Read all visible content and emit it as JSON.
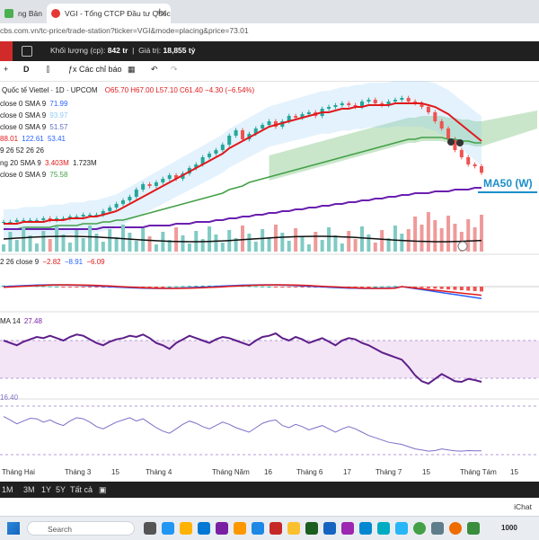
{
  "browser": {
    "tabs": [
      {
        "label": "ng Bản"
      },
      {
        "label": "VGI - Tổng CTCP Đầu tư Quốc t"
      }
    ],
    "url": "cbs.com.vn/tc-price/trade-station?ticker=VGI&mode=placing&price=73.01"
  },
  "site_toolbar": {
    "volume_label": "Khối lượng (cp):",
    "volume_value": "842 tr",
    "value_label": "Giá trị:",
    "value_value": "18,855 tỷ"
  },
  "chart_toolbar": {
    "interval": "D",
    "indicators_label": "Các chỉ báo"
  },
  "legends": {
    "title": "Quốc tế Viettel · 1D · UPCOM",
    "ohlc": {
      "o": "O65.70",
      "h": "H67.00",
      "l": "L57.10",
      "c": "C61.40",
      "chg": "−4.30 (−6.54%)"
    },
    "sma1": {
      "label": "close 0 SMA 9",
      "value": "71.99"
    },
    "sma2": {
      "label": "close 0 SMA 9",
      "value": "93.97"
    },
    "sma3": {
      "label": "close 0 SMA 9",
      "value": "51.57"
    },
    "ichi": {
      "v1": "88.01",
      "v2": "122.61",
      "v3": "53.41"
    },
    "ichi_params": "9 26 52 26 26",
    "vol": {
      "label": "ng 20 SMA 9",
      "v1": "3.403M",
      "v2": "1.723M"
    },
    "sma4": {
      "label": "close 0 SMA 9",
      "value": "75.58"
    },
    "macd": {
      "label": "2 26 close 9",
      "v1": "−2.82",
      "v2": "−8.91",
      "v3": "−6.09"
    },
    "rsi": {
      "label": "MA 14",
      "value": "27.48"
    },
    "stoch": {
      "value": "16.40"
    }
  },
  "annotation": "MA50 (W)",
  "time_axis": [
    "Tháng Hai",
    "Tháng 3",
    "15",
    "Tháng 4",
    "Tháng Năm",
    "16",
    "Tháng 6",
    "17",
    "Tháng 7",
    "15",
    "Tháng Tám",
    "15"
  ],
  "ranges": [
    "1M",
    "3M",
    "1Y",
    "5Y",
    "Tất cả"
  ],
  "bottom_right": "iChat",
  "taskbar": {
    "search_placeholder": "Search",
    "weather": "1000"
  },
  "colors": {
    "up": "#26a69a",
    "down": "#ef5350",
    "ma_red": "#e0191b",
    "ma_green": "#43a047",
    "ma_purple": "#6a1fb0",
    "ma_blue": "#2962ff",
    "cloud": "#a5d6a7",
    "rsi_band": "#f3e5f5"
  },
  "chart_data": {
    "type": "candlestick",
    "ticker": "VGI",
    "interval": "1D",
    "ylim": [
      30,
      110
    ],
    "close": [
      34,
      34,
      35,
      35,
      35,
      35,
      36,
      35,
      36,
      36,
      37,
      37,
      38,
      38,
      38,
      40,
      42,
      44,
      46,
      48,
      52,
      55,
      54,
      56,
      58,
      60,
      58,
      61,
      64,
      66,
      70,
      72,
      74,
      77,
      82,
      85,
      80,
      83,
      86,
      88,
      90,
      87,
      90,
      93,
      92,
      94,
      95,
      93,
      97,
      98,
      99,
      100,
      99,
      98,
      101,
      102,
      100,
      99,
      101,
      102,
      103,
      101,
      100,
      98,
      95,
      90,
      86,
      80,
      74,
      70,
      66,
      65,
      61.4
    ],
    "ma20": [
      33,
      33,
      33,
      34,
      34,
      34,
      34,
      35,
      35,
      35,
      36,
      36,
      36,
      37,
      37,
      38,
      39,
      40,
      42,
      44,
      46,
      48,
      50,
      52,
      54,
      56,
      58,
      60,
      62,
      64,
      66,
      68,
      70,
      72,
      75,
      77,
      79,
      81,
      83,
      85,
      87,
      88,
      89,
      90,
      91,
      92,
      93,
      94,
      95,
      95,
      96,
      97,
      97,
      98,
      98,
      99,
      99,
      99,
      99,
      100,
      100,
      100,
      100,
      100,
      99,
      98,
      96,
      94,
      91,
      88,
      85,
      82,
      79
    ],
    "ma50": [
      30,
      30,
      30,
      31,
      31,
      31,
      31,
      31,
      32,
      32,
      32,
      32,
      33,
      33,
      33,
      34,
      34,
      35,
      35,
      36,
      37,
      38,
      39,
      40,
      41,
      42,
      43,
      44,
      45,
      46,
      47,
      48,
      49,
      50,
      52,
      53,
      54,
      56,
      57,
      58,
      59,
      60,
      61,
      62,
      63,
      64,
      65,
      66,
      67,
      68,
      69,
      70,
      71,
      72,
      73,
      74,
      75,
      76,
      77,
      78,
      79,
      80,
      80,
      81,
      81,
      81,
      81,
      80,
      80,
      79,
      79,
      78,
      78
    ],
    "weekly_ma50": [
      30,
      30,
      30,
      30,
      30,
      30,
      30,
      30,
      30,
      30,
      30,
      30,
      30,
      30,
      30,
      31,
      31,
      31,
      31,
      31,
      31,
      31,
      32,
      32,
      32,
      32,
      33,
      33,
      33,
      34,
      34,
      34,
      35,
      35,
      36,
      36,
      37,
      37,
      38,
      38,
      39,
      39,
      40,
      40,
      41,
      41,
      42,
      42,
      43,
      43,
      44,
      44,
      45,
      45,
      46,
      46,
      47,
      47,
      48,
      48,
      49,
      49,
      50,
      50,
      50,
      51,
      51,
      51,
      52,
      52,
      52,
      53,
      53
    ],
    "rsi": [
      62,
      60,
      58,
      61,
      63,
      65,
      64,
      66,
      64,
      62,
      65,
      67,
      66,
      63,
      60,
      58,
      61,
      63,
      64,
      66,
      65,
      67,
      64,
      60,
      58,
      55,
      60,
      63,
      66,
      64,
      62,
      60,
      63,
      65,
      64,
      62,
      60,
      58,
      62,
      65,
      66,
      68,
      64,
      62,
      65,
      63,
      60,
      62,
      64,
      61,
      58,
      62,
      64,
      63,
      60,
      58,
      55,
      52,
      50,
      48,
      46,
      40,
      33,
      28,
      26,
      30,
      34,
      31,
      28,
      27.48,
      30,
      29,
      27.48
    ],
    "stoch": [
      78,
      72,
      65,
      70,
      75,
      74,
      68,
      72,
      66,
      62,
      70,
      76,
      74,
      68,
      60,
      56,
      62,
      68,
      72,
      76,
      70,
      74,
      66,
      58,
      52,
      48,
      56,
      64,
      70,
      66,
      60,
      56,
      62,
      68,
      64,
      58,
      54,
      50,
      58,
      66,
      70,
      72,
      62,
      58,
      64,
      60,
      54,
      58,
      62,
      56,
      50,
      56,
      60,
      56,
      50,
      44,
      40,
      36,
      32,
      30,
      28,
      24,
      20,
      18,
      16,
      17,
      20,
      18,
      16.4,
      16,
      17,
      16.4,
      16.4
    ]
  }
}
